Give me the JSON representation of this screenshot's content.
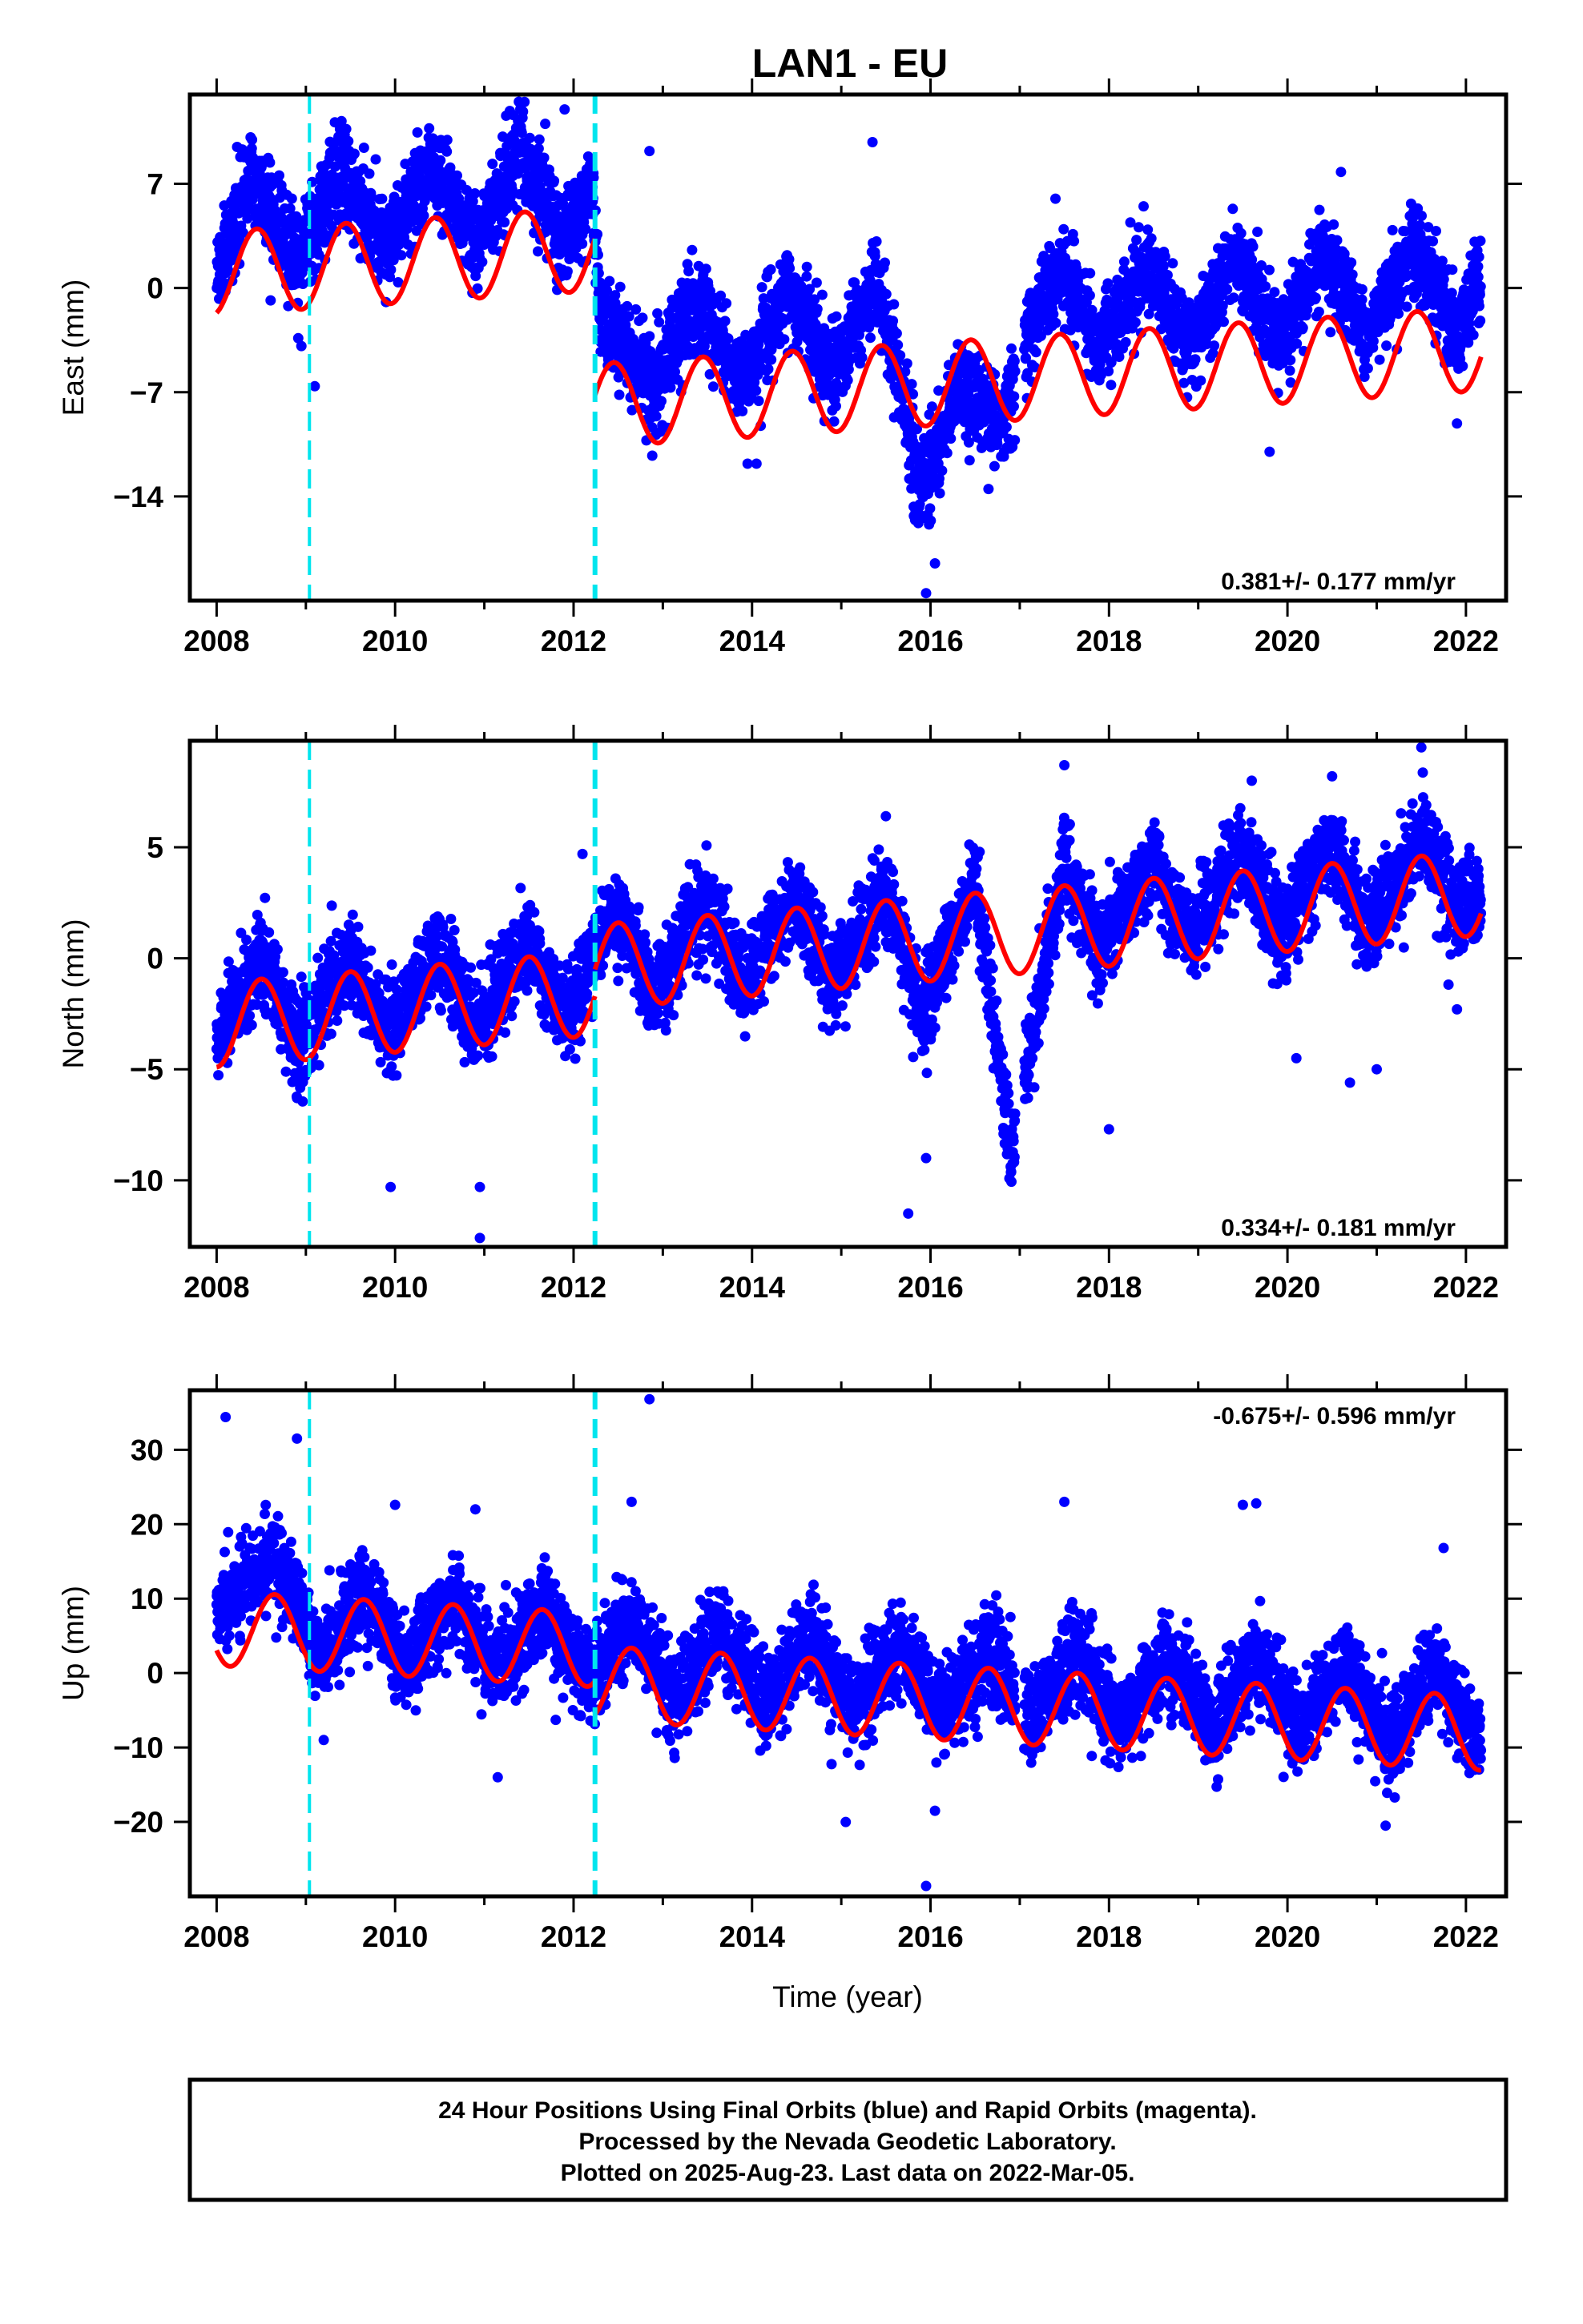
{
  "title": "LAN1 - EU",
  "xlabel": "Time (year)",
  "colors": {
    "final_points": "#0000ff",
    "fit": "#ff0000",
    "offsets": "#00e5ee",
    "frame": "#000000"
  },
  "chart_data": [
    {
      "type": "scatter",
      "ylabel": "East (mm)",
      "xlim": [
        2007.7,
        2022.45
      ],
      "ylim": [
        -21,
        13
      ],
      "xticks": [
        2008,
        2010,
        2012,
        2014,
        2016,
        2018,
        2020,
        2022
      ],
      "xtick_labels": [
        "2008",
        "2010",
        "2012",
        "2014",
        "2016",
        "2018",
        "2020",
        "2022"
      ],
      "yticks": [
        7,
        0,
        -7,
        -14
      ],
      "ytick_labels": [
        "7",
        "0",
        "−7",
        "−14"
      ],
      "xticks_minor_step": 1,
      "offsets": [
        2009.04,
        2012.24
      ],
      "rate_label": "0.381+/- 0.177 mm/yr",
      "rate_position": "bottom-right",
      "data_range": [
        2008.0,
        2022.17
      ],
      "gap": [
        2016.95,
        2017.05
      ],
      "fit": {
        "segments": [
          {
            "x0": 2008.0,
            "x1": 2012.24,
            "offset": 1.0
          },
          {
            "x0": 2012.24,
            "x1": 2022.17,
            "offset": -9.5
          }
        ],
        "rate": 0.381,
        "t0": 2008.0,
        "annual_amplitude": 2.8,
        "annual_peak": 0.45,
        "trend_note": ""
      },
      "series": [
        {
          "samples": [
            [
              2008.0,
              1.2
            ],
            [
              2008.4,
              7.5
            ],
            [
              2008.9,
              1.8
            ],
            [
              2009.4,
              8.0
            ],
            [
              2009.9,
              2.5
            ],
            [
              2010.4,
              8.5
            ],
            [
              2010.9,
              3.0
            ],
            [
              2011.4,
              9.0
            ],
            [
              2011.9,
              3.5
            ],
            [
              2012.2,
              6.5
            ],
            [
              2012.3,
              -1.5
            ],
            [
              2012.9,
              -6.8
            ],
            [
              2013.4,
              -0.5
            ],
            [
              2013.9,
              -6.2
            ],
            [
              2014.4,
              0.0
            ],
            [
              2014.9,
              -5.8
            ],
            [
              2015.4,
              0.5
            ],
            [
              2015.75,
              -9.0
            ],
            [
              2015.85,
              -13.5
            ],
            [
              2016.0,
              -12.0
            ],
            [
              2016.3,
              -7.0
            ],
            [
              2016.6,
              -7.5
            ],
            [
              2016.8,
              -9.0
            ],
            [
              2017.2,
              -1.5
            ],
            [
              2017.5,
              1.2
            ],
            [
              2017.9,
              -4.2
            ],
            [
              2018.4,
              1.6
            ],
            [
              2018.9,
              -4.0
            ],
            [
              2019.4,
              2.0
            ],
            [
              2019.9,
              -3.6
            ],
            [
              2020.4,
              2.4
            ],
            [
              2020.9,
              -3.2
            ],
            [
              2021.4,
              2.8
            ],
            [
              2021.9,
              -2.8
            ],
            [
              2022.15,
              0.5
            ]
          ]
        }
      ],
      "outliers": [
        [
          2011.45,
          12.5
        ],
        [
          2011.9,
          12.0
        ],
        [
          2012.85,
          9.2
        ],
        [
          2015.35,
          9.8
        ],
        [
          2009.1,
          -6.6
        ],
        [
          2008.95,
          -3.9
        ],
        [
          2014.05,
          -11.8
        ],
        [
          2013.95,
          -11.8
        ],
        [
          2015.95,
          -20.5
        ],
        [
          2016.05,
          -18.5
        ],
        [
          2016.65,
          -13.5
        ],
        [
          2019.8,
          -11.0
        ],
        [
          2021.9,
          -9.1
        ],
        [
          2020.6,
          7.8
        ],
        [
          2017.4,
          6.0
        ]
      ]
    },
    {
      "type": "scatter",
      "ylabel": "North (mm)",
      "xlim": [
        2007.7,
        2022.45
      ],
      "ylim": [
        -13,
        9.8
      ],
      "xticks": [
        2008,
        2010,
        2012,
        2014,
        2016,
        2018,
        2020,
        2022
      ],
      "xtick_labels": [
        "2008",
        "2010",
        "2012",
        "2014",
        "2016",
        "2018",
        "2020",
        "2022"
      ],
      "yticks": [
        5,
        0,
        -5,
        -10
      ],
      "ytick_labels": [
        "5",
        "0",
        "−5",
        "−10"
      ],
      "xticks_minor_step": 1,
      "offsets": [
        2009.04,
        2012.24
      ],
      "rate_label": "0.334+/- 0.181 mm/yr",
      "rate_position": "bottom-right",
      "data_range": [
        2008.0,
        2022.17
      ],
      "gap": [
        2016.95,
        2017.05
      ],
      "fit": {
        "segments": [
          {
            "x0": 2008.0,
            "x1": 2012.24,
            "offset": -3.0
          },
          {
            "x0": 2012.24,
            "x1": 2022.17,
            "offset": -1.8
          }
        ],
        "rate": 0.334,
        "t0": 2008.0,
        "annual_amplitude": 1.9,
        "annual_peak": 0.5,
        "trend_note": ""
      },
      "series": [
        {
          "samples": [
            [
              2008.0,
              -3.6
            ],
            [
              2008.5,
              0.0
            ],
            [
              2008.9,
              -3.8
            ],
            [
              2009.5,
              0.0
            ],
            [
              2009.9,
              -3.6
            ],
            [
              2010.5,
              0.4
            ],
            [
              2010.9,
              -3.2
            ],
            [
              2011.5,
              0.7
            ],
            [
              2011.9,
              -2.8
            ],
            [
              2012.5,
              2.2
            ],
            [
              2012.9,
              -1.5
            ],
            [
              2013.5,
              2.6
            ],
            [
              2013.9,
              -1.0
            ],
            [
              2014.5,
              2.8
            ],
            [
              2014.9,
              -1.0
            ],
            [
              2015.5,
              3.0
            ],
            [
              2015.9,
              -2.5
            ],
            [
              2016.5,
              3.4
            ],
            [
              2016.8,
              -5.5
            ],
            [
              2016.9,
              -8.5
            ],
            [
              2017.5,
              4.2
            ],
            [
              2017.9,
              0.5
            ],
            [
              2018.5,
              4.5
            ],
            [
              2018.9,
              0.8
            ],
            [
              2019.5,
              4.8
            ],
            [
              2019.9,
              1.0
            ],
            [
              2020.5,
              5.2
            ],
            [
              2020.9,
              1.2
            ],
            [
              2021.5,
              5.6
            ],
            [
              2021.9,
              2.0
            ],
            [
              2022.15,
              2.8
            ]
          ]
        }
      ],
      "outliers": [
        [
          2010.95,
          -12.6
        ],
        [
          2010.95,
          -10.3
        ],
        [
          2009.95,
          -10.3
        ],
        [
          2015.75,
          -11.5
        ],
        [
          2015.95,
          -9.0
        ],
        [
          2021.5,
          9.5
        ],
        [
          2017.5,
          8.7
        ],
        [
          2018.0,
          -7.7
        ],
        [
          2020.1,
          -4.5
        ],
        [
          2020.7,
          -5.6
        ],
        [
          2021.0,
          -5.0
        ],
        [
          2021.9,
          -2.3
        ],
        [
          2012.1,
          4.7
        ],
        [
          2015.5,
          6.4
        ],
        [
          2020.5,
          8.2
        ],
        [
          2019.6,
          8.0
        ]
      ]
    },
    {
      "type": "scatter",
      "ylabel": "Up (mm)",
      "xlim": [
        2007.7,
        2022.45
      ],
      "ylim": [
        -30,
        38
      ],
      "xticks": [
        2008,
        2010,
        2012,
        2014,
        2016,
        2018,
        2020,
        2022
      ],
      "xtick_labels": [
        "2008",
        "2010",
        "2012",
        "2014",
        "2016",
        "2018",
        "2020",
        "2022"
      ],
      "yticks": [
        30,
        20,
        10,
        0,
        -10,
        -20
      ],
      "ytick_labels": [
        "30",
        "20",
        "10",
        "0",
        "−10",
        "−20"
      ],
      "xticks_minor_step": 1,
      "offsets": [
        2009.04,
        2012.24
      ],
      "rate_label": "-0.675+/- 0.596 mm/yr",
      "rate_position": "top-right",
      "data_range": [
        2008.0,
        2022.17
      ],
      "gap": [
        2016.95,
        2017.05
      ],
      "fit": {
        "segments": [
          {
            "x0": 2008.0,
            "x1": 2012.24,
            "offset": 6.0
          },
          {
            "x0": 2012.24,
            "x1": 2022.17,
            "offset": 1.5
          }
        ],
        "rate": -0.675,
        "t0": 2008.0,
        "annual_amplitude": 5.0,
        "annual_peak": 0.65,
        "trend_note": ""
      },
      "series": [
        {
          "samples": [
            [
              2008.0,
              8.0
            ],
            [
              2008.65,
              16.0
            ],
            [
              2009.15,
              2.0
            ],
            [
              2009.65,
              11.0
            ],
            [
              2010.15,
              1.0
            ],
            [
              2010.65,
              10.0
            ],
            [
              2011.15,
              0.0
            ],
            [
              2011.65,
              9.5
            ],
            [
              2012.15,
              -1.0
            ],
            [
              2012.65,
              6.5
            ],
            [
              2013.15,
              -3.5
            ],
            [
              2013.65,
              6.0
            ],
            [
              2014.15,
              -4.0
            ],
            [
              2014.65,
              5.0
            ],
            [
              2015.15,
              -5.0
            ],
            [
              2015.65,
              4.0
            ],
            [
              2016.15,
              -6.0
            ],
            [
              2016.65,
              3.5
            ],
            [
              2017.15,
              -6.5
            ],
            [
              2017.65,
              3.0
            ],
            [
              2018.15,
              -7.0
            ],
            [
              2018.65,
              2.5
            ],
            [
              2019.15,
              -7.5
            ],
            [
              2019.65,
              2.0
            ],
            [
              2020.15,
              -8.0
            ],
            [
              2020.65,
              1.0
            ],
            [
              2021.15,
              -9.0
            ],
            [
              2021.65,
              0.5
            ],
            [
              2022.15,
              -9.5
            ]
          ]
        }
      ],
      "outliers": [
        [
          2008.1,
          34.4
        ],
        [
          2008.9,
          31.5
        ],
        [
          2012.85,
          36.8
        ],
        [
          2015.95,
          -28.6
        ],
        [
          2017.5,
          23.0
        ],
        [
          2019.65,
          22.8
        ],
        [
          2019.5,
          22.6
        ],
        [
          2012.65,
          23.0
        ],
        [
          2010.9,
          22.0
        ],
        [
          2021.1,
          -20.5
        ],
        [
          2015.05,
          -20.0
        ],
        [
          2016.05,
          -18.5
        ],
        [
          2009.2,
          -9.0
        ],
        [
          2011.15,
          -14.0
        ],
        [
          2021.75,
          16.8
        ],
        [
          2010.0,
          22.6
        ]
      ]
    }
  ],
  "footer": {
    "line1": "24 Hour Positions Using Final Orbits (blue) and Rapid Orbits (magenta).",
    "line2": "Processed by the Nevada Geodetic Laboratory.",
    "line3": "Plotted on 2025-Aug-23. Last data on 2022-Mar-05."
  }
}
